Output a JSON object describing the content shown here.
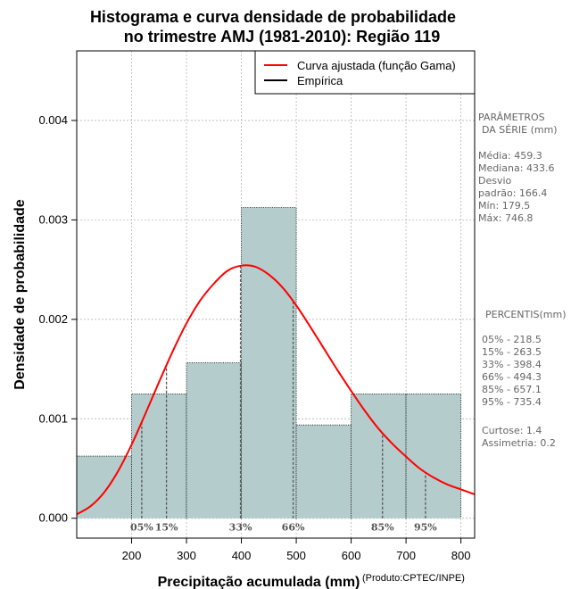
{
  "chart_data": {
    "type": "bar",
    "title_lines": [
      "Histograma e curva densidade de probabilidade",
      "no trimestre AMJ (1981-2010): Região 119"
    ],
    "xlabel": "Precipitação acumulada (mm)",
    "ylabel": "Densidade de probabilidade",
    "credit": "(Produto:CPTEC/INPE)",
    "xlim": [
      100,
      825
    ],
    "ylim": [
      -0.0002,
      0.0047
    ],
    "x_ticks": [
      200,
      300,
      400,
      500,
      600,
      700,
      800
    ],
    "y_ticks": [
      0.0,
      0.001,
      0.002,
      0.003,
      0.004
    ],
    "y_tick_labels": [
      "0.000",
      "0.001",
      "0.002",
      "0.003",
      "0.004"
    ],
    "bins": [
      {
        "start": 100,
        "end": 200,
        "density": 0.000625
      },
      {
        "start": 200,
        "end": 300,
        "density": 0.00125
      },
      {
        "start": 300,
        "end": 400,
        "density": 0.001563
      },
      {
        "start": 400,
        "end": 500,
        "density": 0.003125
      },
      {
        "start": 500,
        "end": 600,
        "density": 0.000938
      },
      {
        "start": 600,
        "end": 700,
        "density": 0.00125
      },
      {
        "start": 700,
        "end": 800,
        "density": 0.00125
      }
    ],
    "fitted_curve": {
      "name": "Curva ajustada (função Gama)",
      "x": [
        100,
        125,
        150,
        175,
        200,
        225,
        250,
        275,
        300,
        325,
        350,
        375,
        400,
        425,
        450,
        475,
        500,
        525,
        550,
        575,
        600,
        625,
        650,
        675,
        700,
        725,
        750,
        775,
        800,
        825
      ],
      "y": [
        4e-05,
        0.00012,
        0.00026,
        0.00047,
        0.00074,
        0.00105,
        0.00137,
        0.00168,
        0.00196,
        0.00219,
        0.00236,
        0.00249,
        0.00254,
        0.00253,
        0.00245,
        0.00232,
        0.00214,
        0.00193,
        0.00171,
        0.00149,
        0.00128,
        0.00108,
        0.0009,
        0.00075,
        0.00062,
        0.0005,
        0.00041,
        0.00034,
        0.00029,
        0.00024
      ]
    },
    "empirical_name": "Empírica",
    "percentiles": [
      {
        "label": "05%",
        "value": 218.5
      },
      {
        "label": "15%",
        "value": 263.5
      },
      {
        "label": "33%",
        "value": 398.4
      },
      {
        "label": "66%",
        "value": 494.3
      },
      {
        "label": "85%",
        "value": 657.1
      },
      {
        "label": "95%",
        "value": 735.4
      }
    ],
    "colors": {
      "bar_fill": "#b4cccc",
      "curve": "#ff0000",
      "grid": "#aaaaaa",
      "percentile_line": "#555555"
    }
  },
  "side_panel": {
    "params_title": [
      "PARÂMETROS",
      "DA SÉRIE (mm)"
    ],
    "params": [
      "Média:  459.3",
      "Mediana:  433.6",
      "Desvio",
      "padrão:  166.4",
      "Mín:  179.5",
      "Máx:  746.8"
    ],
    "percentis_title": "PERCENTIS(mm)",
    "percentis": [
      "05% -   218.5",
      "15% -   263.5",
      "33% -   398.4",
      "66% -   494.3",
      "85% -   657.1",
      "95% -   735.4"
    ],
    "extra": [
      "Curtose:  1.4",
      "Assimetria:  0.2"
    ]
  }
}
